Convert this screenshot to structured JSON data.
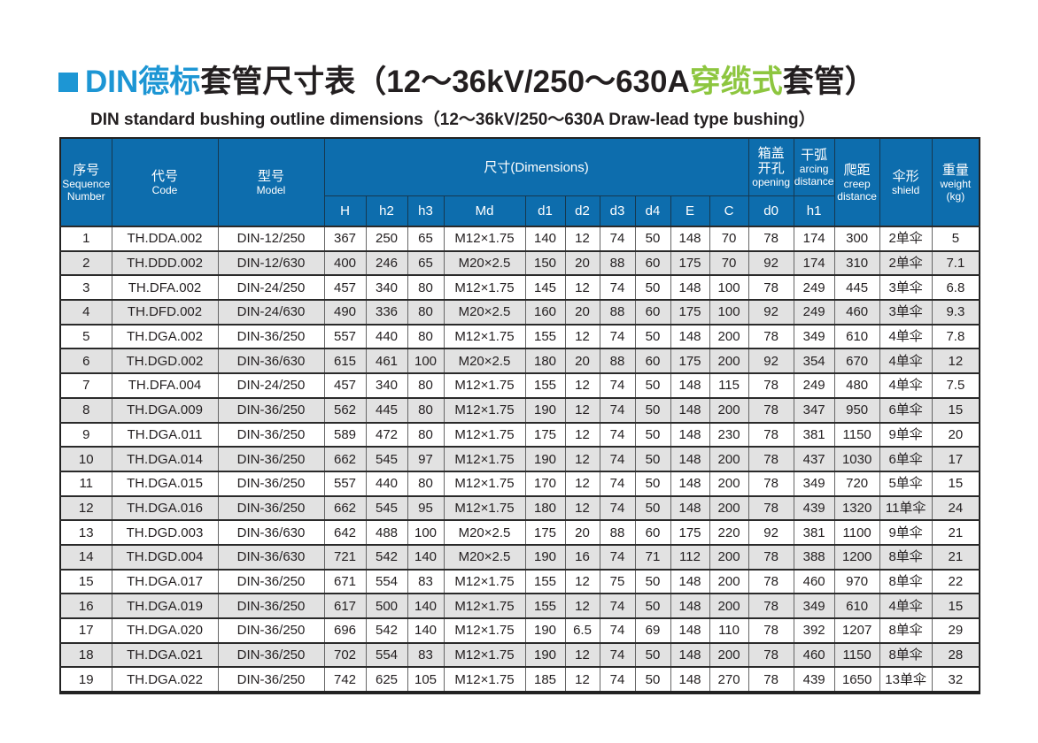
{
  "page": {
    "title": {
      "blue_part": "DIN德标",
      "black_part_1": "套管尺寸表（12～36kV/250～630A",
      "green_part": "穿缆式",
      "black_part_2": "套管）"
    },
    "subtitle": "DIN standard bushing outline dimensions（12～36kV/250～630A Draw-lead type bushing）"
  },
  "colors": {
    "title_blue": "#1d96d4",
    "highlight_green": "#8dc63f",
    "header_blue": "#0d6dad",
    "row_alt_gray": "#e2e2e2"
  },
  "table": {
    "header": {
      "seq": {
        "zh": "序号",
        "en": "Sequence\nNumber"
      },
      "code": {
        "zh": "代号",
        "en": "Code"
      },
      "model": {
        "zh": "型号",
        "en": "Model"
      },
      "dimensions": "尺寸(Dimensions)",
      "dim_cols": [
        "H",
        "h2",
        "h3",
        "Md",
        "d1",
        "d2",
        "d3",
        "d4",
        "E",
        "C"
      ],
      "opening": {
        "zh": "箱盖\n开孔",
        "en": "opening",
        "sub": "d0"
      },
      "arcing": {
        "zh": "干弧",
        "en": "arcing\ndistance",
        "sub": "h1"
      },
      "creep": {
        "zh": "爬距",
        "en": "creep\ndistance"
      },
      "shield": {
        "zh": "伞形",
        "en": "shield"
      },
      "weight": {
        "zh": "重量",
        "en": "weight\n(kg)"
      }
    },
    "rows": [
      [
        "1",
        "TH.DDA.002",
        "DIN-12/250",
        "367",
        "250",
        "65",
        "M12×1.75",
        "140",
        "12",
        "74",
        "50",
        "148",
        "70",
        "78",
        "174",
        "300",
        "2单伞",
        "5"
      ],
      [
        "2",
        "TH.DDD.002",
        "DIN-12/630",
        "400",
        "246",
        "65",
        "M20×2.5",
        "150",
        "20",
        "88",
        "60",
        "175",
        "70",
        "92",
        "174",
        "310",
        "2单伞",
        "7.1"
      ],
      [
        "3",
        "TH.DFA.002",
        "DIN-24/250",
        "457",
        "340",
        "80",
        "M12×1.75",
        "145",
        "12",
        "74",
        "50",
        "148",
        "100",
        "78",
        "249",
        "445",
        "3单伞",
        "6.8"
      ],
      [
        "4",
        "TH.DFD.002",
        "DIN-24/630",
        "490",
        "336",
        "80",
        "M20×2.5",
        "160",
        "20",
        "88",
        "60",
        "175",
        "100",
        "92",
        "249",
        "460",
        "3单伞",
        "9.3"
      ],
      [
        "5",
        "TH.DGA.002",
        "DIN-36/250",
        "557",
        "440",
        "80",
        "M12×1.75",
        "155",
        "12",
        "74",
        "50",
        "148",
        "200",
        "78",
        "349",
        "610",
        "4单伞",
        "7.8"
      ],
      [
        "6",
        "TH.DGD.002",
        "DIN-36/630",
        "615",
        "461",
        "100",
        "M20×2.5",
        "180",
        "20",
        "88",
        "60",
        "175",
        "200",
        "92",
        "354",
        "670",
        "4单伞",
        "12"
      ],
      [
        "7",
        "TH.DFA.004",
        "DIN-24/250",
        "457",
        "340",
        "80",
        "M12×1.75",
        "155",
        "12",
        "74",
        "50",
        "148",
        "115",
        "78",
        "249",
        "480",
        "4单伞",
        "7.5"
      ],
      [
        "8",
        "TH.DGA.009",
        "DIN-36/250",
        "562",
        "445",
        "80",
        "M12×1.75",
        "190",
        "12",
        "74",
        "50",
        "148",
        "200",
        "78",
        "347",
        "950",
        "6单伞",
        "15"
      ],
      [
        "9",
        "TH.DGA.011",
        "DIN-36/250",
        "589",
        "472",
        "80",
        "M12×1.75",
        "175",
        "12",
        "74",
        "50",
        "148",
        "230",
        "78",
        "381",
        "1150",
        "9单伞",
        "20"
      ],
      [
        "10",
        "TH.DGA.014",
        "DIN-36/250",
        "662",
        "545",
        "97",
        "M12×1.75",
        "190",
        "12",
        "74",
        "50",
        "148",
        "200",
        "78",
        "437",
        "1030",
        "6单伞",
        "17"
      ],
      [
        "11",
        "TH.DGA.015",
        "DIN-36/250",
        "557",
        "440",
        "80",
        "M12×1.75",
        "170",
        "12",
        "74",
        "50",
        "148",
        "200",
        "78",
        "349",
        "720",
        "5单伞",
        "15"
      ],
      [
        "12",
        "TH.DGA.016",
        "DIN-36/250",
        "662",
        "545",
        "95",
        "M12×1.75",
        "180",
        "12",
        "74",
        "50",
        "148",
        "200",
        "78",
        "439",
        "1320",
        "11单伞",
        "24"
      ],
      [
        "13",
        "TH.DGD.003",
        "DIN-36/630",
        "642",
        "488",
        "100",
        "M20×2.5",
        "175",
        "20",
        "88",
        "60",
        "175",
        "220",
        "92",
        "381",
        "1100",
        "9单伞",
        "21"
      ],
      [
        "14",
        "TH.DGD.004",
        "DIN-36/630",
        "721",
        "542",
        "140",
        "M20×2.5",
        "190",
        "16",
        "74",
        "71",
        "112",
        "200",
        "78",
        "388",
        "1200",
        "8单伞",
        "21"
      ],
      [
        "15",
        "TH.DGA.017",
        "DIN-36/250",
        "671",
        "554",
        "83",
        "M12×1.75",
        "155",
        "12",
        "75",
        "50",
        "148",
        "200",
        "78",
        "460",
        "970",
        "8单伞",
        "22"
      ],
      [
        "16",
        "TH.DGA.019",
        "DIN-36/250",
        "617",
        "500",
        "140",
        "M12×1.75",
        "155",
        "12",
        "74",
        "50",
        "148",
        "200",
        "78",
        "349",
        "610",
        "4单伞",
        "15"
      ],
      [
        "17",
        "TH.DGA.020",
        "DIN-36/250",
        "696",
        "542",
        "140",
        "M12×1.75",
        "190",
        "6.5",
        "74",
        "69",
        "148",
        "110",
        "78",
        "392",
        "1207",
        "8单伞",
        "29"
      ],
      [
        "18",
        "TH.DGA.021",
        "DIN-36/250",
        "702",
        "554",
        "83",
        "M12×1.75",
        "190",
        "12",
        "74",
        "50",
        "148",
        "200",
        "78",
        "460",
        "1150",
        "8单伞",
        "28"
      ],
      [
        "19",
        "TH.DGA.022",
        "DIN-36/250",
        "742",
        "625",
        "105",
        "M12×1.75",
        "185",
        "12",
        "74",
        "50",
        "148",
        "270",
        "78",
        "439",
        "1650",
        "13单伞",
        "32"
      ]
    ]
  }
}
